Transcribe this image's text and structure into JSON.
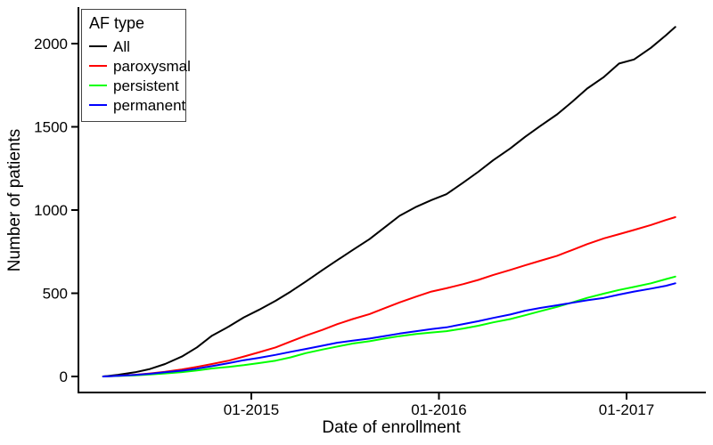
{
  "chart_data": {
    "type": "line",
    "title": "",
    "xlabel": "Date of enrollment",
    "ylabel": "Number of patients",
    "x_unit": "decimal_year",
    "xlim": [
      2014.07,
      2017.42
    ],
    "ylim": [
      0,
      2220
    ],
    "grid": false,
    "x_ticks": {
      "values": [
        2015,
        2016,
        2017
      ],
      "labels": [
        "01-2015",
        "01-2016",
        "01-2017"
      ]
    },
    "y_ticks": {
      "values": [
        0,
        500,
        1000,
        1500,
        2000
      ],
      "labels": [
        "0",
        "500",
        "1000",
        "1500",
        "2000"
      ]
    },
    "legend": {
      "title": "AF type",
      "position": "top-left"
    },
    "x": [
      2014.21,
      2014.29,
      2014.38,
      2014.46,
      2014.54,
      2014.63,
      2014.71,
      2014.79,
      2014.88,
      2014.96,
      2015.04,
      2015.13,
      2015.21,
      2015.29,
      2015.38,
      2015.46,
      2015.54,
      2015.63,
      2015.71,
      2015.79,
      2015.88,
      2015.96,
      2016.04,
      2016.13,
      2016.21,
      2016.29,
      2016.38,
      2016.46,
      2016.54,
      2016.63,
      2016.71,
      2016.79,
      2016.88,
      2016.96,
      2017.04,
      2017.13,
      2017.21,
      2017.26
    ],
    "series": [
      {
        "name": "All",
        "color": "#000000",
        "values": [
          0,
          10,
          25,
          45,
          75,
          120,
          175,
          245,
          300,
          355,
          400,
          455,
          510,
          570,
          640,
          700,
          760,
          825,
          895,
          965,
          1020,
          1060,
          1095,
          1165,
          1230,
          1300,
          1370,
          1440,
          1505,
          1575,
          1650,
          1730,
          1800,
          1880,
          1905,
          1975,
          2050,
          2100
        ]
      },
      {
        "name": "paroxysmal",
        "color": "#ff0000",
        "values": [
          0,
          4,
          10,
          18,
          28,
          42,
          58,
          75,
          95,
          120,
          145,
          175,
          210,
          245,
          280,
          315,
          345,
          375,
          410,
          445,
          480,
          510,
          530,
          555,
          580,
          610,
          640,
          668,
          695,
          725,
          760,
          795,
          830,
          855,
          880,
          910,
          940,
          957
        ]
      },
      {
        "name": "persistent",
        "color": "#00ff00",
        "values": [
          0,
          3,
          7,
          12,
          18,
          26,
          36,
          48,
          58,
          68,
          80,
          95,
          115,
          140,
          162,
          180,
          198,
          212,
          228,
          242,
          255,
          264,
          272,
          288,
          305,
          325,
          345,
          368,
          392,
          418,
          445,
          472,
          498,
          520,
          538,
          560,
          585,
          600
        ]
      },
      {
        "name": "permanent",
        "color": "#0000ff",
        "values": [
          0,
          4,
          9,
          16,
          25,
          35,
          47,
          62,
          80,
          98,
          112,
          130,
          148,
          165,
          185,
          203,
          215,
          228,
          243,
          258,
          272,
          285,
          295,
          315,
          332,
          352,
          372,
          395,
          412,
          428,
          443,
          458,
          472,
          492,
          510,
          528,
          545,
          560
        ]
      }
    ]
  }
}
